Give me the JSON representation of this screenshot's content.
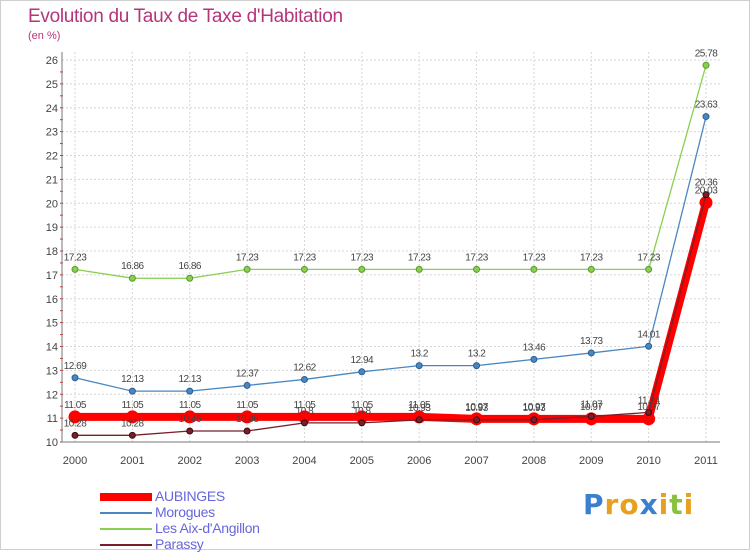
{
  "header": {
    "title": "Evolution du Taux de Taxe d'Habitation",
    "subtitle": "(en %)"
  },
  "chart_data": {
    "type": "line",
    "title": "Evolution du Taux de Taxe d'Habitation",
    "ylabel": "(en %)",
    "xlabel": "",
    "x": [
      "2000",
      "2001",
      "2002",
      "2003",
      "2004",
      "2005",
      "2006",
      "2007",
      "2008",
      "2009",
      "2010",
      "2011"
    ],
    "ylim": [
      10,
      26
    ],
    "yticks": [
      10,
      11,
      12,
      13,
      14,
      15,
      16,
      17,
      18,
      19,
      20,
      21,
      22,
      23,
      24,
      25,
      26
    ],
    "grid": true,
    "legend_position": "bottom-left",
    "series": [
      {
        "name": "AUBINGES",
        "color": "#ff0000",
        "values": [
          11.05,
          11.05,
          11.05,
          11.05,
          11.05,
          11.05,
          11.05,
          10.97,
          10.97,
          10.97,
          10.97,
          20.03
        ],
        "labels": [
          "11.05",
          "11.05",
          "11.05",
          "11.05",
          "11.05",
          "11.05",
          "11.05",
          "10.97",
          "10.97",
          "10.97",
          "10.97",
          "20.03"
        ]
      },
      {
        "name": "Morogues",
        "color": "#4a86c0",
        "values": [
          12.69,
          12.13,
          12.13,
          12.37,
          12.62,
          12.94,
          13.2,
          13.2,
          13.46,
          13.73,
          14.01,
          23.63
        ],
        "labels": [
          "12.69",
          "12.13",
          "12.13",
          "12.37",
          "12.62",
          "12.94",
          "13.2",
          "13.2",
          "13.46",
          "13.73",
          "14.01",
          "23.63"
        ]
      },
      {
        "name": "Les Aix-d'Angillon",
        "color": "#88d050",
        "values": [
          17.23,
          16.86,
          16.86,
          17.23,
          17.23,
          17.23,
          17.23,
          17.23,
          17.23,
          17.23,
          17.23,
          25.78
        ],
        "labels": [
          "17.23",
          "16.86",
          "16.86",
          "17.23",
          "17.23",
          "17.23",
          "17.23",
          "17.23",
          "17.23",
          "17.23",
          "17.23",
          "25.78"
        ]
      },
      {
        "name": "Parassy",
        "color": "#7a1e2a",
        "values": [
          10.28,
          10.28,
          10.46,
          10.46,
          10.8,
          10.8,
          10.93,
          10.93,
          10.93,
          11.07,
          11.24,
          20.36
        ],
        "labels": [
          "10.28",
          "10.28",
          "10.46",
          "10.46",
          "10.8",
          "10.8",
          "10.93",
          "10.93",
          "10.93",
          "11.07",
          "11.24",
          "20.36"
        ]
      }
    ]
  },
  "logo": {
    "letters": [
      "P",
      "r",
      "o",
      "x",
      "i",
      "t",
      "i"
    ],
    "colors": [
      "#3a7fd0",
      "#e8a020",
      "#e8a020",
      "#3a7fd0",
      "#e8a020",
      "#88c040",
      "#e8a020"
    ]
  }
}
